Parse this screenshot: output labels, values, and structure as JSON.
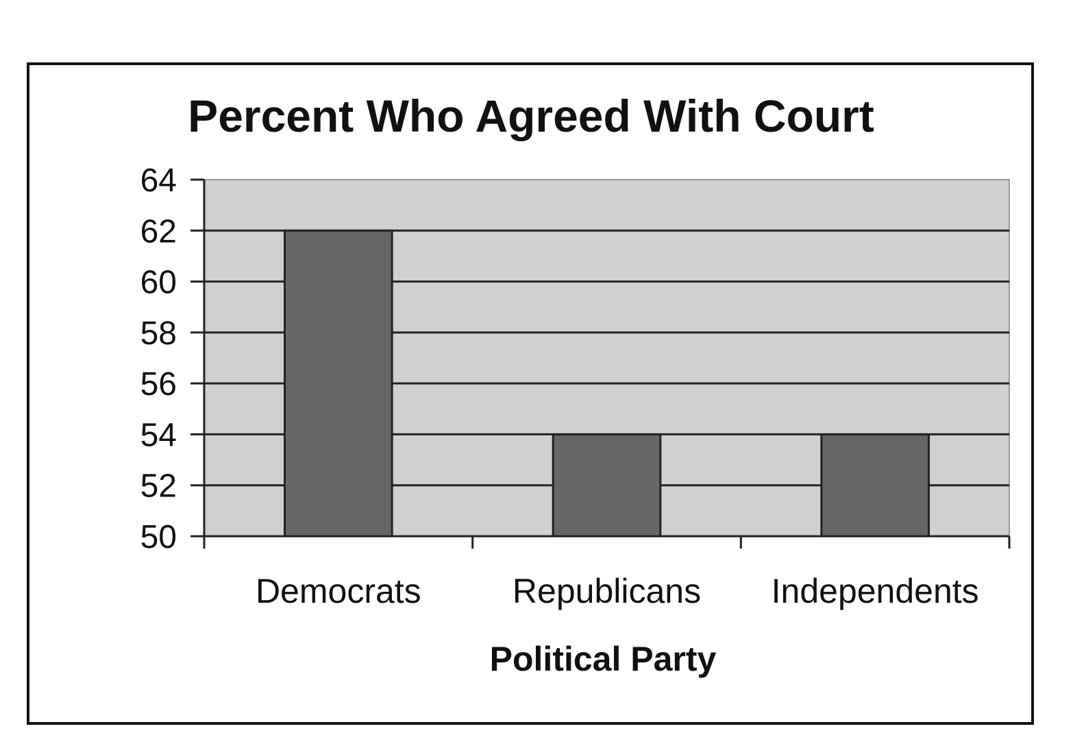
{
  "chart_data": {
    "type": "bar",
    "title": "Percent Who Agreed With Court",
    "xlabel": "Political Party",
    "ylabel": "",
    "categories": [
      "Democrats",
      "Republicans",
      "Independents"
    ],
    "values": [
      62,
      54,
      54
    ],
    "ylim": [
      50,
      64
    ],
    "yticks": [
      "64",
      "62",
      "60",
      "58",
      "56",
      "54",
      "52",
      "50"
    ],
    "grid": true,
    "legend": "none",
    "colors": {
      "bar": "#666666",
      "plot_background": "#d0d0d0",
      "gridline": "#222222",
      "text": "#111111"
    }
  }
}
